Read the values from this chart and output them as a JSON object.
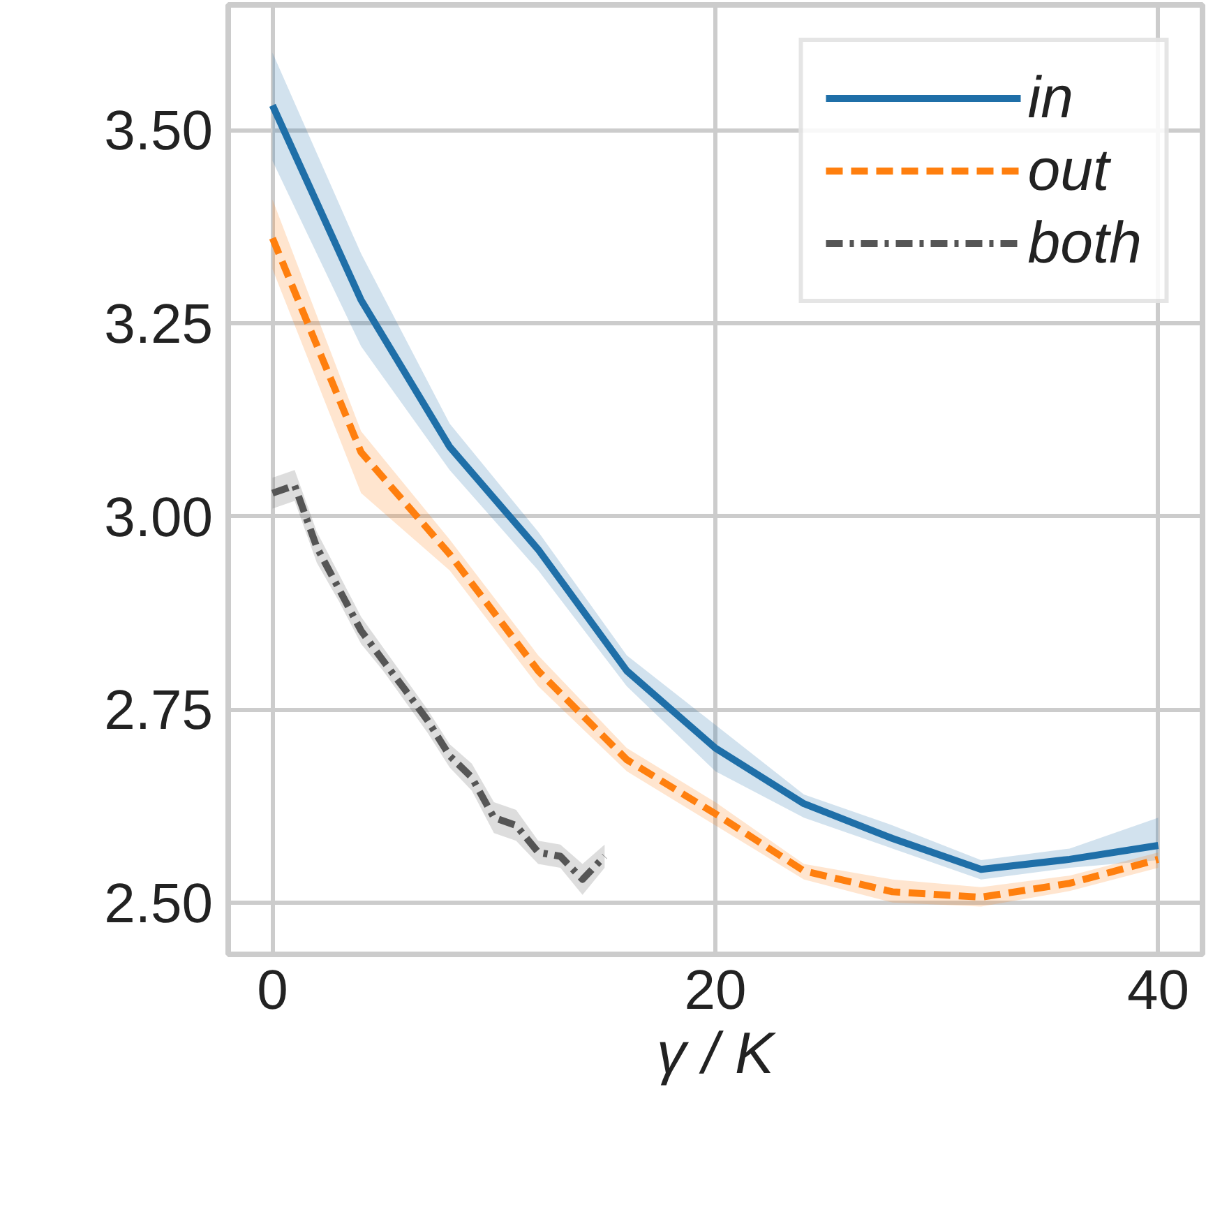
{
  "chart_data": {
    "type": "line",
    "xlabel": "γ / K",
    "xlim": [
      -2,
      42
    ],
    "xticks": [
      0,
      20,
      40
    ],
    "ylim": [
      2.433,
      3.662
    ],
    "yticks": [
      {
        "value": 2.5,
        "label": "2.50"
      },
      {
        "value": 2.75,
        "label": "2.75"
      },
      {
        "value": 3.0,
        "label": "3.00"
      },
      {
        "value": 3.25,
        "label": "3.25"
      },
      {
        "value": 3.5,
        "label": "3.50"
      }
    ],
    "grid": true,
    "legend": "top right",
    "marker": "none",
    "series": [
      {
        "name": "in",
        "color": "#1f6fa8",
        "line_style": "solid",
        "x": [
          0,
          4,
          8,
          12,
          16,
          20,
          24,
          28,
          32,
          36,
          40
        ],
        "values": [
          3.532,
          3.28,
          3.09,
          2.957,
          2.8,
          2.7,
          2.628,
          2.583,
          2.543,
          2.556,
          2.574
        ],
        "lower": [
          3.46,
          3.22,
          3.06,
          2.93,
          2.78,
          2.67,
          2.61,
          2.57,
          2.53,
          2.545,
          2.555
        ],
        "upper": [
          3.6,
          3.34,
          3.12,
          2.98,
          2.82,
          2.73,
          2.64,
          2.6,
          2.555,
          2.57,
          2.61
        ]
      },
      {
        "name": "out",
        "color": "#ff7f0e",
        "line_style": "dashed",
        "x": [
          0,
          4,
          8,
          12,
          16,
          20,
          24,
          28,
          32,
          36,
          40
        ],
        "values": [
          3.36,
          3.083,
          2.951,
          2.8,
          2.685,
          2.615,
          2.541,
          2.514,
          2.507,
          2.525,
          2.556
        ],
        "lower": [
          3.32,
          3.03,
          2.93,
          2.78,
          2.67,
          2.6,
          2.53,
          2.5,
          2.495,
          2.515,
          2.545
        ],
        "upper": [
          3.41,
          3.11,
          2.97,
          2.82,
          2.7,
          2.63,
          2.55,
          2.53,
          2.52,
          2.535,
          2.565
        ]
      },
      {
        "name": "both",
        "color": "#555555",
        "line_style": "dashdot",
        "x": [
          0,
          1,
          2,
          3,
          4,
          5,
          6,
          7,
          8,
          9,
          10,
          11,
          12,
          13,
          14,
          15
        ],
        "values": [
          3.03,
          3.04,
          2.96,
          2.906,
          2.852,
          2.813,
          2.775,
          2.736,
          2.69,
          2.662,
          2.61,
          2.6,
          2.565,
          2.56,
          2.53,
          2.56
        ],
        "lower": [
          3.01,
          3.02,
          2.94,
          2.89,
          2.835,
          2.8,
          2.76,
          2.72,
          2.675,
          2.645,
          2.59,
          2.58,
          2.55,
          2.545,
          2.51,
          2.545
        ],
        "upper": [
          3.05,
          3.06,
          2.98,
          2.925,
          2.87,
          2.83,
          2.79,
          2.75,
          2.705,
          2.68,
          2.63,
          2.62,
          2.58,
          2.575,
          2.55,
          2.575
        ]
      }
    ]
  }
}
